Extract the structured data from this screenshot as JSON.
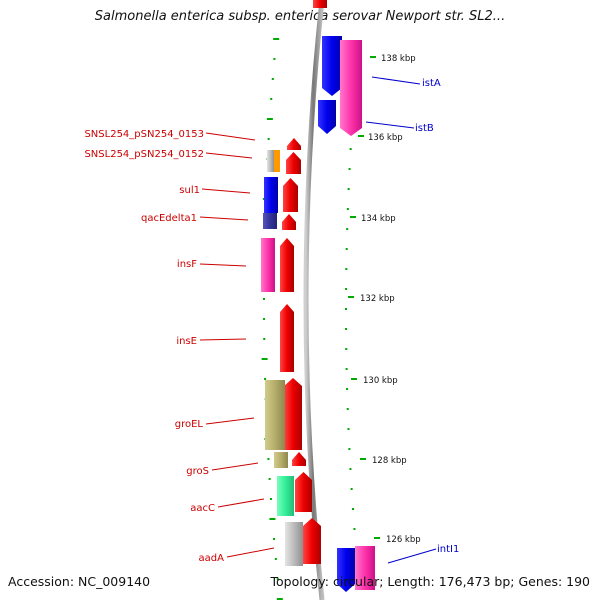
{
  "title": "Salmonella enterica subsp. enterica serovar Newport str. SL2...",
  "footer": {
    "accession": "Accession: NC_009140",
    "topology": "Topology: circular; Length: 176,473 bp; Genes: 190"
  },
  "ticks": [
    "138 kbp",
    "136 kbp",
    "134 kbp",
    "132 kbp",
    "130 kbp",
    "128 kbp",
    "126 kbp"
  ],
  "labels_left": [
    "SNSL254_pSN254_0153",
    "SNSL254_pSN254_0152",
    "sul1",
    "qacEdelta1",
    "insF",
    "insE",
    "groEL",
    "groS",
    "aacC",
    "aadA"
  ],
  "labels_right": [
    "istA",
    "istB",
    "intI1"
  ],
  "colors": {
    "cds": "#ee0000",
    "trna": "#ff99cc",
    "blue": "#0000ee",
    "pink": "#ff33aa",
    "olive": "#b5ad6a",
    "green": "#33ee99",
    "gray": "#bbbbbb",
    "navy": "#333399",
    "orange": "#ff9900",
    "backbone": "#777777",
    "tick": "#00aa00",
    "label_red": "#cc0000",
    "label_blue": "#0000cc"
  }
}
